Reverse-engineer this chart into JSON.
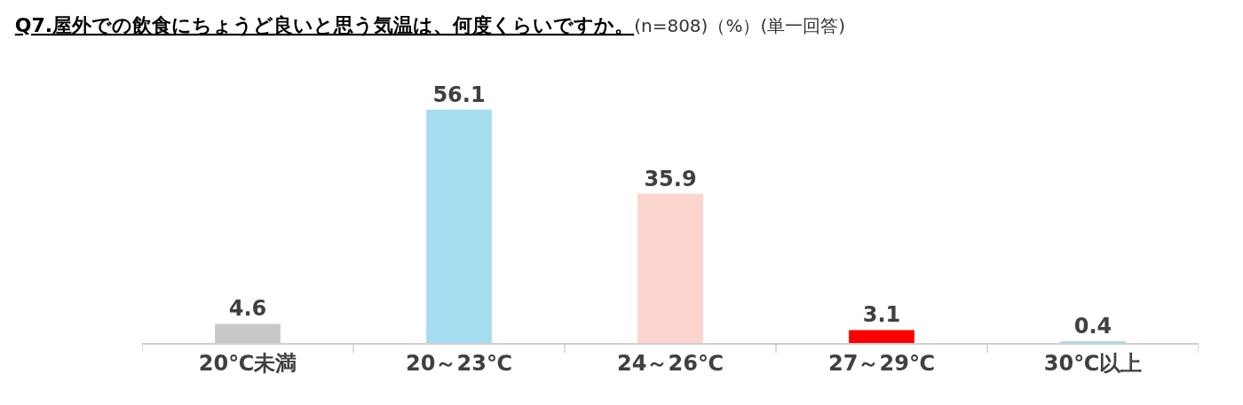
{
  "chart_data": {
    "type": "bar",
    "title": "Q7.屋外での飲食にちょうど良いと思う気温は、何度くらいですか。",
    "subtitle": "(n=808)（%）(単一回答)",
    "categories": [
      "20℃未満",
      "20～23℃",
      "24～26℃",
      "27～29℃",
      "30℃以上"
    ],
    "values": [
      4.6,
      56.1,
      35.9,
      3.1,
      0.4
    ],
    "colors": [
      "#c8c8c8",
      "#a6dcef",
      "#fcd5ce",
      "#ff0000",
      "#a6dcef"
    ],
    "data_labels": true,
    "legend": false
  }
}
